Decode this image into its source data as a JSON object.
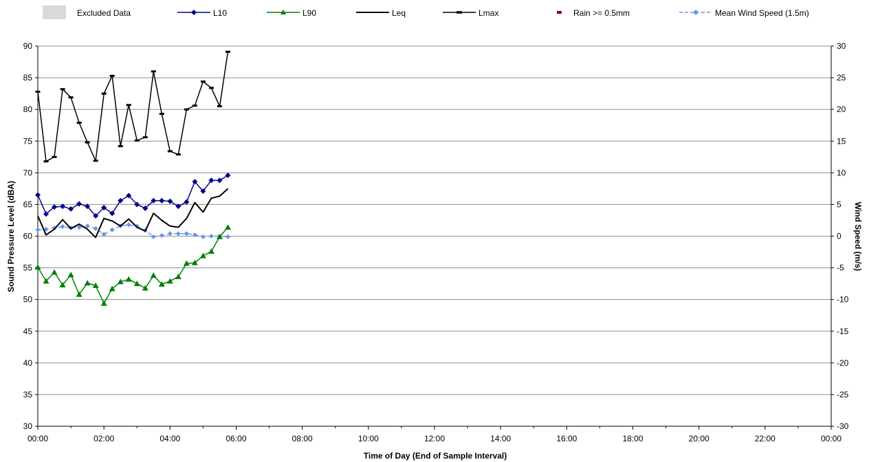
{
  "chart_data": {
    "type": "line",
    "title": "",
    "xlabel": "Time of Day (End of Sample Interval)",
    "ylabel": "Sound Pressure Level (dBA)",
    "y2label": "Wind Speed (m/s)",
    "ylim": [
      30,
      90
    ],
    "y2lim": [
      -30,
      30
    ],
    "xlim_hours": [
      0,
      24
    ],
    "x_tick_labels": [
      "00:00",
      "02:00",
      "04:00",
      "06:00",
      "08:00",
      "10:00",
      "12:00",
      "14:00",
      "16:00",
      "18:00",
      "20:00",
      "22:00",
      "00:00"
    ],
    "y_tick_labels": [
      "30",
      "35",
      "40",
      "45",
      "50",
      "55",
      "60",
      "65",
      "70",
      "75",
      "80",
      "85",
      "90"
    ],
    "y2_tick_labels": [
      "-30",
      "-25",
      "-20",
      "-15",
      "-10",
      "-5",
      "0",
      "5",
      "10",
      "15",
      "20",
      "25",
      "30"
    ],
    "grid": "horizontal",
    "legend_position": "top",
    "legend": [
      {
        "name": "Excluded Data",
        "kind": "area",
        "color": "#d9d9d9"
      },
      {
        "name": "L10",
        "kind": "line-diamond",
        "color": "#00008b"
      },
      {
        "name": "L90",
        "kind": "line-triangle",
        "color": "#008000"
      },
      {
        "name": "Leq",
        "kind": "line",
        "color": "#000000"
      },
      {
        "name": "Lmax",
        "kind": "line-dash-marker",
        "color": "#000000"
      },
      {
        "name": "Rain >= 0.5mm",
        "kind": "marker",
        "color": "#8b0000"
      },
      {
        "name": "Mean Wind Speed (1.5m)",
        "kind": "dashed-diamond",
        "color": "#6495ed"
      }
    ],
    "x_hours": [
      0.0,
      0.25,
      0.5,
      0.75,
      1.0,
      1.25,
      1.5,
      1.75,
      2.0,
      2.25,
      2.5,
      2.75,
      3.0,
      3.25,
      3.5,
      3.75,
      4.0,
      4.25,
      4.5,
      4.75,
      5.0,
      5.25,
      5.5,
      5.75
    ],
    "series": [
      {
        "name": "Lmax",
        "axis": "left",
        "color": "#000000",
        "values": [
          82.8,
          71.8,
          72.5,
          83.2,
          81.9,
          77.9,
          74.8,
          71.9,
          82.5,
          85.3,
          74.2,
          80.7,
          75.1,
          75.6,
          86.0,
          79.3,
          73.4,
          72.9,
          80.0,
          80.6,
          84.4,
          83.4,
          80.5,
          89.1
        ]
      },
      {
        "name": "L10",
        "axis": "left",
        "color": "#00008b",
        "values": [
          66.5,
          63.5,
          64.6,
          64.7,
          64.3,
          65.1,
          64.7,
          63.2,
          64.5,
          63.6,
          65.6,
          66.4,
          65.0,
          64.4,
          65.6,
          65.6,
          65.5,
          64.7,
          65.4,
          68.6,
          67.1,
          68.8,
          68.8,
          69.6
        ]
      },
      {
        "name": "Leq",
        "axis": "left",
        "color": "#000000",
        "values": [
          63.2,
          60.2,
          61.1,
          62.6,
          61.2,
          61.9,
          61.1,
          59.8,
          62.8,
          62.4,
          61.6,
          62.7,
          61.4,
          60.8,
          63.6,
          62.5,
          61.6,
          61.4,
          62.8,
          65.3,
          63.8,
          66.0,
          66.3,
          67.5
        ]
      },
      {
        "name": "L90",
        "axis": "left",
        "color": "#008000",
        "values": [
          55.1,
          52.9,
          54.3,
          52.3,
          53.9,
          50.8,
          52.6,
          52.2,
          49.4,
          51.7,
          52.8,
          53.2,
          52.5,
          51.8,
          53.8,
          52.4,
          52.9,
          53.6,
          55.7,
          55.8,
          56.9,
          57.6,
          59.9,
          61.4
        ]
      },
      {
        "name": "Mean Wind Speed (1.5m)",
        "axis": "right",
        "color": "#6495ed",
        "values": [
          1.0,
          1.1,
          1.3,
          1.5,
          1.3,
          1.4,
          1.6,
          1.2,
          0.3,
          1.0,
          1.6,
          1.8,
          1.6,
          0.9,
          -0.1,
          0.1,
          0.4,
          0.4,
          0.4,
          0.2,
          -0.1,
          0.0,
          0.0,
          -0.1
        ]
      }
    ]
  }
}
